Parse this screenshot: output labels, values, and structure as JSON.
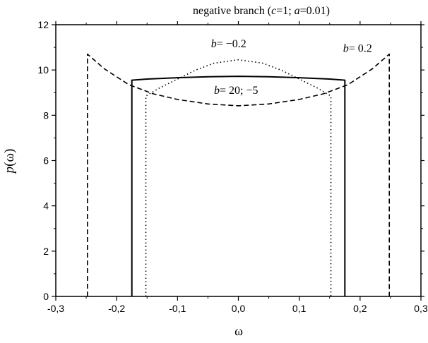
{
  "chart_data": {
    "type": "line",
    "title_parts": [
      {
        "text": "negative branch (",
        "italic": false
      },
      {
        "text": "c",
        "italic": true
      },
      {
        "text": "=1; ",
        "italic": false
      },
      {
        "text": "a",
        "italic": true
      },
      {
        "text": "=0.01)",
        "italic": false
      }
    ],
    "xlabel": "ω",
    "ylabel_parts": [
      {
        "text": "p",
        "italic": true
      },
      {
        "text": "(ω)",
        "italic": false
      }
    ],
    "xlim": [
      -0.3,
      0.3
    ],
    "ylim": [
      0,
      12
    ],
    "x_ticks": [
      -0.3,
      -0.2,
      -0.1,
      0.0,
      0.1,
      0.2,
      0.3
    ],
    "x_tick_labels": [
      "-0,3",
      "-0,2",
      "-0,1",
      "0,0",
      "0,1",
      "0,2",
      "0,3"
    ],
    "y_ticks": [
      0,
      2,
      4,
      6,
      8,
      10,
      12
    ],
    "y_tick_labels": [
      "0",
      "2",
      "4",
      "6",
      "8",
      "10",
      "12"
    ],
    "grid": false,
    "series": [
      {
        "style": "solid",
        "x": [
          -0.175,
          -0.175,
          -0.15,
          -0.1,
          -0.05,
          0.0,
          0.05,
          0.1,
          0.15,
          0.175,
          0.175
        ],
        "y": [
          0,
          9.55,
          9.6,
          9.66,
          9.7,
          9.72,
          9.7,
          9.66,
          9.6,
          9.55,
          0
        ]
      },
      {
        "style": "dotted",
        "x": [
          -0.152,
          -0.152,
          -0.13,
          -0.1,
          -0.07,
          -0.04,
          0.0,
          0.04,
          0.07,
          0.1,
          0.13,
          0.152,
          0.152
        ],
        "y": [
          0,
          8.85,
          9.2,
          9.6,
          10.0,
          10.3,
          10.45,
          10.3,
          10.0,
          9.6,
          9.2,
          8.85,
          0
        ]
      },
      {
        "style": "dashed",
        "x": [
          -0.248,
          -0.248,
          -0.22,
          -0.18,
          -0.14,
          -0.1,
          -0.05,
          0.0,
          0.05,
          0.1,
          0.14,
          0.18,
          0.22,
          0.248,
          0.248
        ],
        "y": [
          0,
          10.7,
          10.05,
          9.35,
          8.95,
          8.7,
          8.5,
          8.42,
          8.5,
          8.7,
          8.95,
          9.35,
          10.05,
          10.7,
          0
        ]
      }
    ],
    "annotations": [
      {
        "parts": [
          {
            "text": "b",
            "italic": true
          },
          {
            "text": "= −0.2",
            "italic": false
          }
        ],
        "x": -0.045,
        "y": 11.0,
        "anchor": "start"
      },
      {
        "parts": [
          {
            "text": "b",
            "italic": true
          },
          {
            "text": "= 0.2",
            "italic": false
          }
        ],
        "x": 0.172,
        "y": 10.8,
        "anchor": "start"
      },
      {
        "parts": [
          {
            "text": "b",
            "italic": true
          },
          {
            "text": "= 20; −5",
            "italic": false
          }
        ],
        "x": -0.04,
        "y": 8.95,
        "anchor": "start"
      }
    ]
  }
}
